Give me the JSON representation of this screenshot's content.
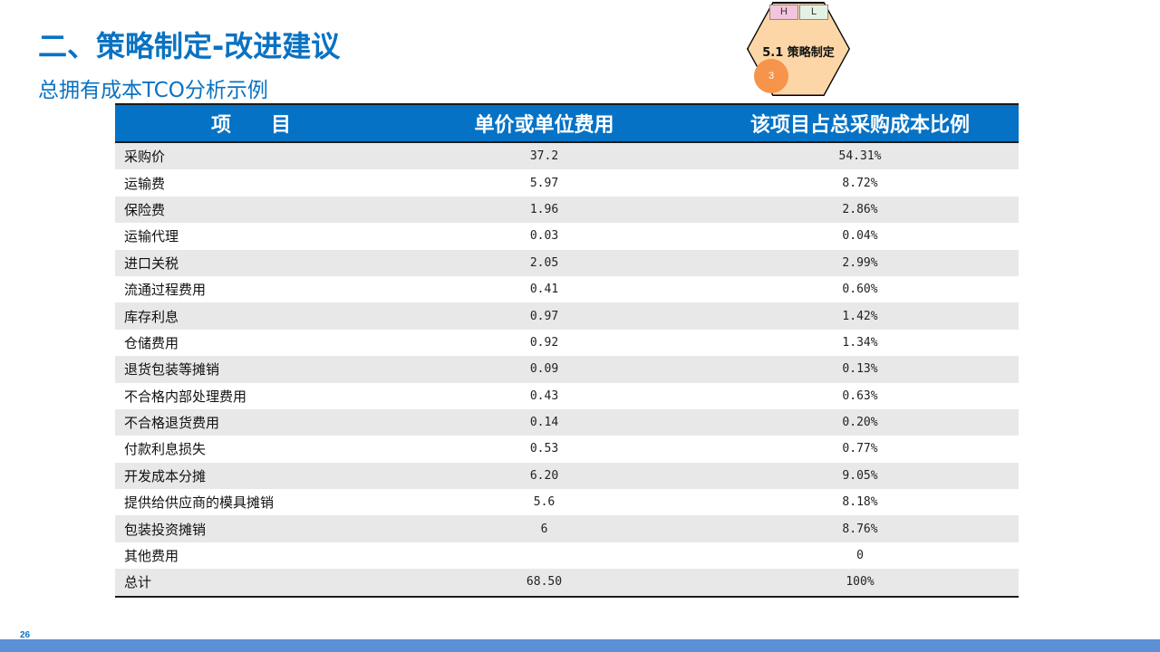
{
  "slide": {
    "title": "二、策略制定-改进建议",
    "subtitle": "总拥有成本TCO分析示例",
    "page_number": "26"
  },
  "badge": {
    "tag_h": "H",
    "tag_l": "L",
    "label": "5.1 策略制定",
    "circle_number": "3"
  },
  "table": {
    "headers": [
      "项　　目",
      "单价或单位费用",
      "该项目占总采购成本比例"
    ],
    "rows": [
      {
        "item": "采购价",
        "unit_cost": "37.2",
        "ratio": "54.31%"
      },
      {
        "item": "运输费",
        "unit_cost": "5.97",
        "ratio": "8.72%"
      },
      {
        "item": "保险费",
        "unit_cost": "1.96",
        "ratio": "2.86%"
      },
      {
        "item": "运输代理",
        "unit_cost": "0.03",
        "ratio": "0.04%"
      },
      {
        "item": "进口关税",
        "unit_cost": "2.05",
        "ratio": "2.99%"
      },
      {
        "item": "流通过程费用",
        "unit_cost": "0.41",
        "ratio": "0.60%"
      },
      {
        "item": "库存利息",
        "unit_cost": "0.97",
        "ratio": "1.42%"
      },
      {
        "item": "仓储费用",
        "unit_cost": "0.92",
        "ratio": "1.34%"
      },
      {
        "item": "退货包装等摊销",
        "unit_cost": "0.09",
        "ratio": "0.13%"
      },
      {
        "item": "不合格内部处理费用",
        "unit_cost": "0.43",
        "ratio": "0.63%"
      },
      {
        "item": "不合格退货费用",
        "unit_cost": "0.14",
        "ratio": "0.20%"
      },
      {
        "item": "付款利息损失",
        "unit_cost": "0.53",
        "ratio": "0.77%"
      },
      {
        "item": "开发成本分摊",
        "unit_cost": "6.20",
        "ratio": "9.05%"
      },
      {
        "item": "提供给供应商的模具摊销",
        "unit_cost": "5.6",
        "ratio": "8.18%"
      },
      {
        "item": "包装投资摊销",
        "unit_cost": "6",
        "ratio": "8.76%"
      },
      {
        "item": "其他费用",
        "unit_cost": "",
        "ratio": "0"
      },
      {
        "item": "总计",
        "unit_cost": "68.50",
        "ratio": "100%"
      }
    ]
  },
  "colors": {
    "accent": "#0a72c2",
    "header_bg": "#0572c5",
    "row_alt": "#e8e8e8",
    "footer_bar": "#5b8fd6",
    "badge_fill": "#fcd6a6",
    "badge_circle": "#f5944a"
  }
}
